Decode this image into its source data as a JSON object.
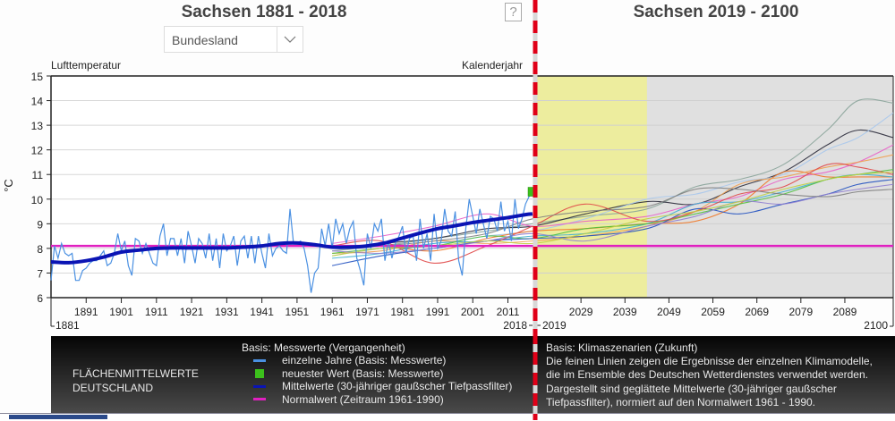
{
  "header": {
    "title_past": "Sachsen 1881 - 2018",
    "title_future": "Sachsen 2019 - 2100",
    "help_label": "?",
    "region_select": {
      "selected": "Bundesland",
      "icon": "chevron-down-icon"
    }
  },
  "axes": {
    "ylabel_top": "Lufttemperatur",
    "ylabel_unit": "°C",
    "xlabel_top": "Kalenderjahr"
  },
  "colors": {
    "annual": "#4a90e2",
    "mean": "#0a14b4",
    "normal": "#e020c0",
    "latest": "#3cc01c",
    "divider": "#e00018",
    "near_future_band": "#eded9e",
    "future_band": "#e0e0e0"
  },
  "legend": {
    "region_line1": "FLÄCHENMITTELWERTE",
    "region_line2": "DEUTSCHLAND",
    "basis_past": "Basis: Messwerte (Vergangenheit)",
    "items": [
      {
        "label": "einzelne Jahre (Basis: Messwerte)",
        "swatch": "line",
        "color": "#4a90e2"
      },
      {
        "label": "neuester Wert (Basis: Messwerte)",
        "swatch": "square",
        "color": "#3cc01c"
      },
      {
        "label": "Mittelwerte (30-jähriger gaußscher Tiefpassfilter)",
        "swatch": "line",
        "color": "#0a14b4"
      },
      {
        "label": "Normalwert (Zeitraum 1961-1990)",
        "swatch": "line",
        "color": "#e020c0"
      }
    ],
    "future_lines": [
      "Basis: Klimaszenarien (Zukunft)",
      "Die feinen Linien zeigen die Ergebnisse der einzelnen Klimamodelle,",
      "die im Ensemble des Deutschen Wetterdienstes verwendet werden.",
      "Dargestellt sind geglättete Mittelwerte (30-jähriger gaußscher",
      "Tiefpassfilter), normiert auf den Normalwert 1961 - 1990."
    ]
  },
  "chart_data": {
    "type": "line",
    "title": "Sachsen 1881 - 2018 / Sachsen 2019 - 2100",
    "ylabel": "Lufttemperatur (°C)",
    "xlabel": "Kalenderjahr",
    "ylim": [
      6,
      15
    ],
    "yticks": [
      6,
      7,
      8,
      9,
      10,
      11,
      12,
      13,
      14,
      15
    ],
    "grid": true,
    "past": {
      "xlim": [
        1881,
        2018
      ],
      "xticks": [
        1891,
        1901,
        1911,
        1921,
        1931,
        1941,
        1951,
        1961,
        1971,
        1981,
        1991,
        2001,
        2011
      ],
      "xedge_labels": [
        "1881",
        "2018"
      ]
    },
    "future": {
      "xlim": [
        2019,
        2100
      ],
      "xticks": [
        2029,
        2039,
        2049,
        2059,
        2069,
        2079,
        2089
      ],
      "xedge_labels": [
        "2019",
        "2100"
      ],
      "highlight_range": [
        2019,
        2044
      ]
    },
    "normal_value": 8.1,
    "latest_value": {
      "year": 2018,
      "value": 10.3
    },
    "annual": {
      "name": "einzelne Jahre",
      "x_start": 1881,
      "values": [
        6.7,
        8.1,
        7.6,
        8.2,
        7.8,
        7.7,
        7.8,
        6.7,
        6.7,
        7.1,
        7.2,
        7.4,
        7.5,
        7.5,
        7.7,
        7.9,
        7.3,
        7.4,
        7.8,
        8.6,
        7.9,
        8.3,
        7.3,
        6.9,
        8.4,
        8.3,
        7.8,
        8.2,
        7.8,
        7.4,
        7.3,
        8.5,
        9.0,
        7.7,
        8.4,
        8.4,
        7.7,
        8.4,
        7.4,
        8.7,
        8.1,
        7.4,
        8.4,
        8.2,
        7.6,
        8.6,
        7.5,
        8.4,
        7.2,
        8.6,
        7.9,
        8.1,
        8.5,
        7.3,
        8.3,
        8.5,
        7.6,
        8.5,
        7.4,
        8.5,
        7.8,
        7.2,
        8.6,
        7.7,
        8.0,
        8.1,
        7.9,
        7.8,
        9.6,
        8.2,
        8.2,
        8.3,
        8.0,
        7.3,
        6.2,
        7.0,
        7.2,
        8.8,
        8.1,
        9.0,
        8.0,
        9.2,
        8.6,
        9.0,
        8.2,
        8.8,
        9.1,
        7.6,
        7.1,
        6.5,
        8.6,
        8.0,
        9.0,
        8.7,
        9.2,
        7.5,
        8.3,
        7.6,
        8.2,
        8.5,
        8.9,
        7.8,
        8.4,
        8.5,
        7.5,
        9.2,
        8.0,
        8.6,
        7.5,
        9.4,
        8.0,
        8.3,
        9.6,
        8.7,
        8.5,
        9.5,
        7.5,
        6.9,
        8.8,
        10.0,
        9.3,
        8.6,
        9.6,
        9.0,
        8.4,
        9.3,
        9.2,
        8.7,
        9.9,
        8.7,
        9.1,
        8.3,
        10.0,
        8.8,
        9.2,
        9.8,
        10.1,
        10.3
      ]
    },
    "mean": {
      "name": "Mittelwerte (30-jähriger gaußscher Tiefpassfilter)",
      "x": [
        1881,
        1886,
        1891,
        1896,
        1901,
        1906,
        1911,
        1916,
        1921,
        1926,
        1931,
        1936,
        1941,
        1946,
        1951,
        1956,
        1961,
        1966,
        1971,
        1976,
        1981,
        1986,
        1991,
        1996,
        2001,
        2006,
        2011,
        2016,
        2018
      ],
      "values": [
        7.45,
        7.42,
        7.5,
        7.65,
        7.85,
        7.93,
        8.0,
        8.02,
        8.02,
        8.02,
        8.02,
        8.05,
        8.1,
        8.2,
        8.22,
        8.15,
        8.05,
        8.05,
        8.1,
        8.22,
        8.42,
        8.62,
        8.8,
        8.92,
        9.05,
        9.15,
        9.25,
        9.37,
        9.4
      ]
    },
    "models": [
      {
        "color": "#8aa49a",
        "x": [
          1961,
          1975,
          1990,
          2005,
          2018,
          2030,
          2044,
          2055,
          2065,
          2075,
          2085,
          2092,
          2100
        ],
        "values": [
          7.9,
          8.1,
          8.4,
          8.7,
          9.0,
          9.3,
          9.6,
          10.5,
          10.8,
          11.4,
          12.8,
          14.0,
          13.9
        ]
      },
      {
        "color": "#2a2a3a",
        "x": [
          1961,
          1975,
          1990,
          2005,
          2018,
          2030,
          2044,
          2055,
          2065,
          2075,
          2085,
          2092,
          2100
        ],
        "values": [
          8.0,
          8.2,
          8.4,
          8.8,
          8.9,
          9.4,
          9.9,
          9.8,
          10.5,
          11.1,
          12.2,
          12.8,
          12.5
        ]
      },
      {
        "color": "#a8c8ec",
        "x": [
          1961,
          1975,
          1990,
          2005,
          2018,
          2030,
          2044,
          2055,
          2065,
          2075,
          2085,
          2092,
          2100
        ],
        "values": [
          7.7,
          8.0,
          8.2,
          8.5,
          8.7,
          9.2,
          10.0,
          10.2,
          10.7,
          11.0,
          12.0,
          12.5,
          13.5
        ]
      },
      {
        "color": "#e860c8",
        "x": [
          1961,
          1975,
          1990,
          2005,
          2018,
          2030,
          2044,
          2055,
          2065,
          2075,
          2085,
          2092,
          2100
        ],
        "values": [
          8.2,
          8.5,
          8.9,
          9.4,
          8.9,
          9.1,
          9.3,
          9.8,
          10.1,
          10.8,
          11.1,
          11.5,
          12.2
        ]
      },
      {
        "color": "#f07828",
        "x": [
          1961,
          1975,
          1990,
          2005,
          2018,
          2030,
          2044,
          2055,
          2065,
          2075,
          2085,
          2092,
          2100
        ],
        "values": [
          8.0,
          8.1,
          7.9,
          8.4,
          8.7,
          8.8,
          9.0,
          9.1,
          9.8,
          11.1,
          10.9,
          10.9,
          10.9
        ]
      },
      {
        "color": "#f0a050",
        "x": [
          1961,
          1975,
          1990,
          2005,
          2018,
          2030,
          2044,
          2055,
          2065,
          2075,
          2085,
          2092,
          2100
        ],
        "values": [
          7.8,
          7.9,
          8.3,
          8.2,
          8.3,
          8.5,
          8.9,
          9.5,
          10.6,
          10.9,
          11.3,
          11.5,
          11.8
        ]
      },
      {
        "color": "#40b0d0",
        "x": [
          1961,
          1975,
          1990,
          2005,
          2018,
          2030,
          2044,
          2055,
          2065,
          2075,
          2085,
          2092,
          2100
        ],
        "values": [
          7.6,
          7.8,
          8.2,
          8.3,
          8.5,
          8.6,
          9.0,
          9.8,
          9.9,
          10.3,
          10.8,
          11.0,
          10.9
        ]
      },
      {
        "color": "#50c040",
        "x": [
          1961,
          1975,
          1990,
          2005,
          2018,
          2030,
          2044,
          2055,
          2065,
          2075,
          2085,
          2092,
          2100
        ],
        "values": [
          7.8,
          8.0,
          8.1,
          8.5,
          8.4,
          8.8,
          9.0,
          9.4,
          9.8,
          10.2,
          10.8,
          11.0,
          11.2
        ]
      },
      {
        "color": "#2050c0",
        "x": [
          1961,
          1975,
          1990,
          2005,
          2018,
          2030,
          2044,
          2055,
          2065,
          2075,
          2085,
          2092,
          2100
        ],
        "values": [
          7.3,
          7.7,
          8.0,
          8.3,
          8.4,
          8.5,
          8.8,
          9.6,
          9.4,
          9.8,
          10.2,
          10.6,
          10.8
        ]
      },
      {
        "color": "#e04848",
        "x": [
          1961,
          1975,
          1990,
          2005,
          2018,
          2030,
          2044,
          2055,
          2065,
          2075,
          2085,
          2092,
          2100
        ],
        "values": [
          8.1,
          8.3,
          7.4,
          8.1,
          8.9,
          9.8,
          9.1,
          9.5,
          10.2,
          10.5,
          11.4,
          11.3,
          11.0
        ]
      },
      {
        "color": "#9080d0",
        "x": [
          1961,
          1975,
          1990,
          2005,
          2018,
          2030,
          2044,
          2055,
          2065,
          2075,
          2085,
          2092,
          2100
        ],
        "values": [
          7.9,
          7.8,
          8.0,
          8.3,
          8.6,
          8.3,
          8.9,
          9.3,
          9.9,
          9.8,
          10.2,
          10.4,
          10.6
        ]
      },
      {
        "color": "#808080",
        "x": [
          1961,
          1975,
          1990,
          2005,
          2018,
          2030,
          2044,
          2055,
          2065,
          2075,
          2085,
          2092,
          2100
        ],
        "values": [
          8.0,
          8.1,
          8.3,
          8.6,
          9.2,
          9.5,
          9.7,
          10.4,
          10.4,
          10.2,
          10.1,
          10.3,
          10.4
        ]
      },
      {
        "color": "#c0d040",
        "x": [
          1961,
          1975,
          1990,
          2005,
          2018,
          2030,
          2044,
          2055,
          2065,
          2075,
          2085,
          2092,
          2100
        ],
        "values": [
          7.7,
          8.0,
          8.1,
          8.3,
          8.2,
          8.6,
          9.2,
          9.5,
          9.9,
          10.4,
          10.8,
          11.0,
          11.1
        ]
      }
    ]
  }
}
